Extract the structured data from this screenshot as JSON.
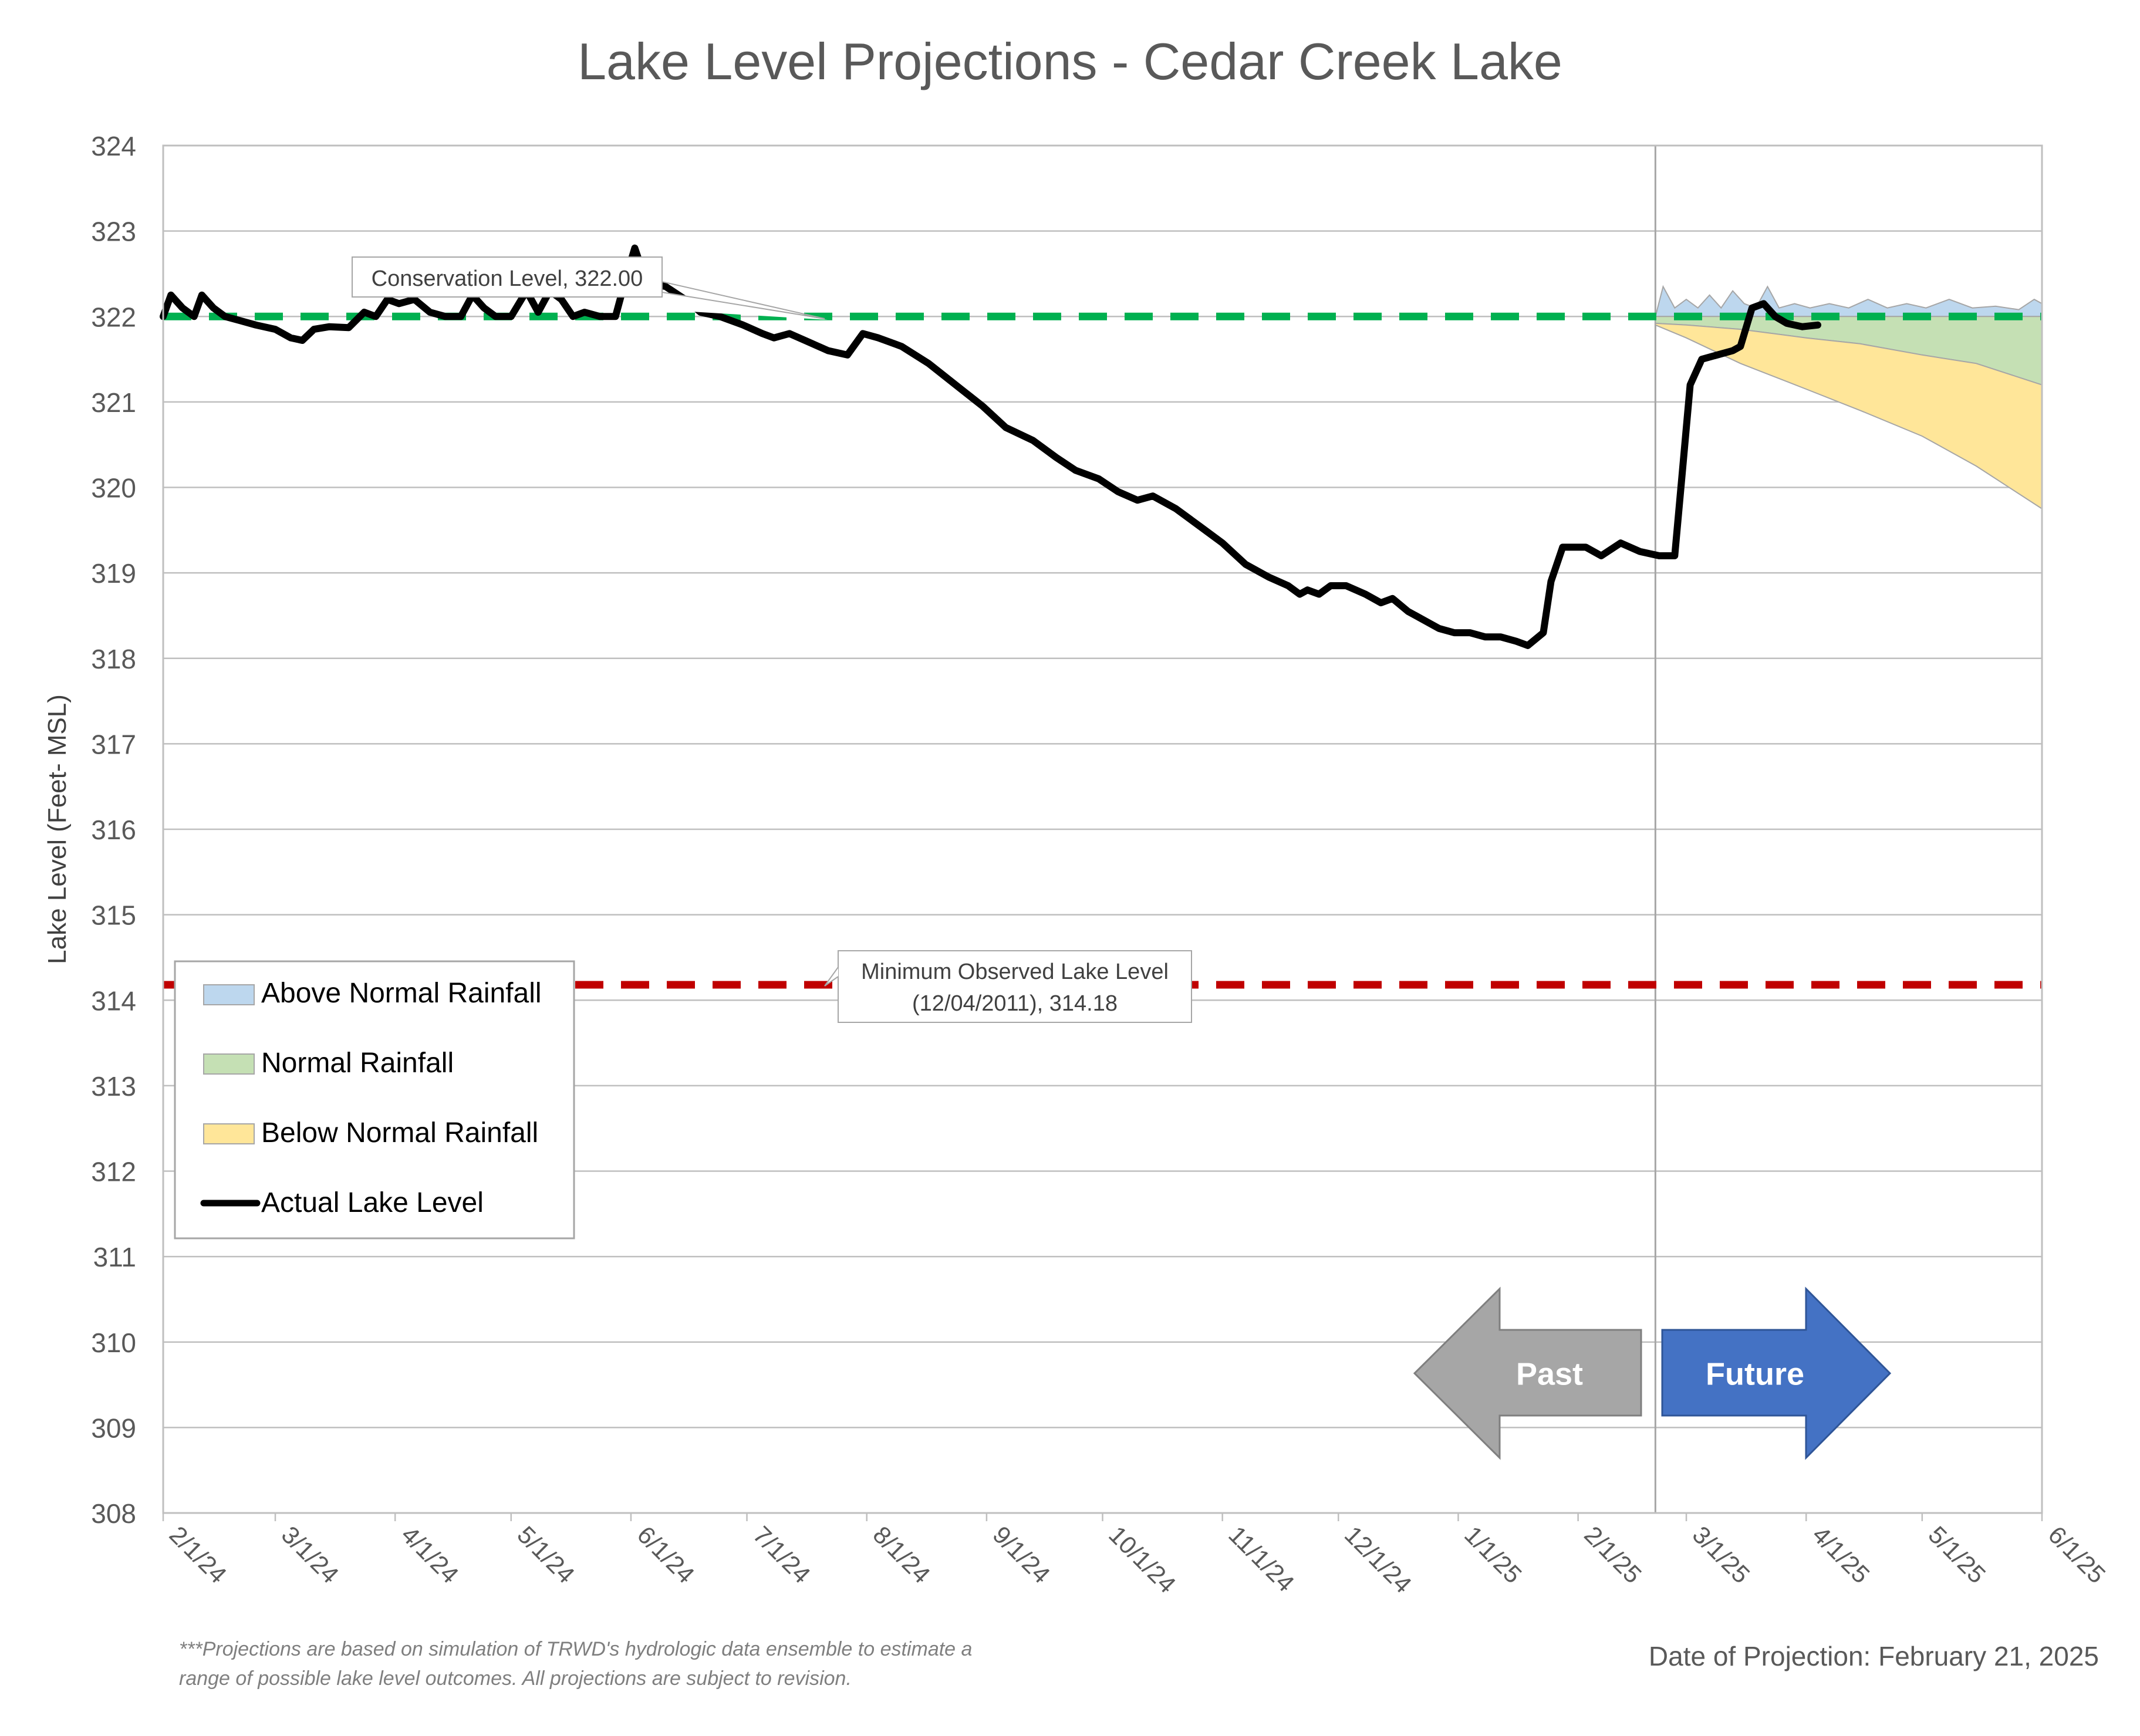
{
  "chart_data": {
    "type": "area",
    "title": "Lake Level Projections - Cedar Creek Lake",
    "ylabel": "Lake Level (Feet- MSL)",
    "xlabel": "",
    "ylim": [
      308,
      324
    ],
    "yticks": [
      308,
      309,
      310,
      311,
      312,
      313,
      314,
      315,
      316,
      317,
      318,
      319,
      320,
      321,
      322,
      323,
      324
    ],
    "xlim": [
      "2024-02-01",
      "2025-06-01"
    ],
    "xticks": [
      {
        "date": "2024-02-01",
        "label": "2/1/24"
      },
      {
        "date": "2024-03-01",
        "label": "3/1/24"
      },
      {
        "date": "2024-04-01",
        "label": "4/1/24"
      },
      {
        "date": "2024-05-01",
        "label": "5/1/24"
      },
      {
        "date": "2024-06-01",
        "label": "6/1/24"
      },
      {
        "date": "2024-07-01",
        "label": "7/1/24"
      },
      {
        "date": "2024-08-01",
        "label": "8/1/24"
      },
      {
        "date": "2024-09-01",
        "label": "9/1/24"
      },
      {
        "date": "2024-10-01",
        "label": "10/1/24"
      },
      {
        "date": "2024-11-01",
        "label": "11/1/24"
      },
      {
        "date": "2024-12-01",
        "label": "12/1/24"
      },
      {
        "date": "2025-01-01",
        "label": "1/1/25"
      },
      {
        "date": "2025-02-01",
        "label": "2/1/25"
      },
      {
        "date": "2025-03-01",
        "label": "3/1/25"
      },
      {
        "date": "2025-04-01",
        "label": "4/1/25"
      },
      {
        "date": "2025-05-01",
        "label": "5/1/25"
      },
      {
        "date": "2025-06-01",
        "label": "6/1/25"
      }
    ],
    "grid": true,
    "legend_position": "bottom-left",
    "projection_date": "2025-02-21",
    "series": [
      {
        "name": "Actual Lake Level",
        "kind": "line",
        "color": "#000000",
        "points": [
          [
            "2024-02-01",
            322.0
          ],
          [
            "2024-02-03",
            322.25
          ],
          [
            "2024-02-06",
            322.1
          ],
          [
            "2024-02-09",
            322.0
          ],
          [
            "2024-02-11",
            322.25
          ],
          [
            "2024-02-14",
            322.1
          ],
          [
            "2024-02-17",
            322.0
          ],
          [
            "2024-02-21",
            321.95
          ],
          [
            "2024-02-25",
            321.9
          ],
          [
            "2024-03-01",
            321.85
          ],
          [
            "2024-03-05",
            321.75
          ],
          [
            "2024-03-08",
            321.72
          ],
          [
            "2024-03-11",
            321.85
          ],
          [
            "2024-03-15",
            321.88
          ],
          [
            "2024-03-20",
            321.87
          ],
          [
            "2024-03-24",
            322.05
          ],
          [
            "2024-03-27",
            322.0
          ],
          [
            "2024-03-30",
            322.2
          ],
          [
            "2024-04-02",
            322.15
          ],
          [
            "2024-04-06",
            322.2
          ],
          [
            "2024-04-10",
            322.05
          ],
          [
            "2024-04-14",
            322.0
          ],
          [
            "2024-04-18",
            322.0
          ],
          [
            "2024-04-21",
            322.25
          ],
          [
            "2024-04-24",
            322.1
          ],
          [
            "2024-04-27",
            322.0
          ],
          [
            "2024-05-01",
            322.0
          ],
          [
            "2024-05-05",
            322.3
          ],
          [
            "2024-05-08",
            322.05
          ],
          [
            "2024-05-11",
            322.3
          ],
          [
            "2024-05-14",
            322.2
          ],
          [
            "2024-05-17",
            322.0
          ],
          [
            "2024-05-20",
            322.05
          ],
          [
            "2024-05-24",
            322.0
          ],
          [
            "2024-05-28",
            322.0
          ],
          [
            "2024-05-31",
            322.5
          ],
          [
            "2024-06-02",
            322.8
          ],
          [
            "2024-06-05",
            322.4
          ],
          [
            "2024-06-10",
            322.35
          ],
          [
            "2024-06-15",
            322.2
          ],
          [
            "2024-06-19",
            322.05
          ],
          [
            "2024-06-24",
            322.0
          ],
          [
            "2024-06-30",
            321.9
          ],
          [
            "2024-07-05",
            321.8
          ],
          [
            "2024-07-08",
            321.75
          ],
          [
            "2024-07-12",
            321.8
          ],
          [
            "2024-07-17",
            321.7
          ],
          [
            "2024-07-22",
            321.6
          ],
          [
            "2024-07-27",
            321.55
          ],
          [
            "2024-07-31",
            321.8
          ],
          [
            "2024-08-04",
            321.75
          ],
          [
            "2024-08-10",
            321.65
          ],
          [
            "2024-08-17",
            321.45
          ],
          [
            "2024-08-24",
            321.2
          ],
          [
            "2024-08-31",
            320.95
          ],
          [
            "2024-09-06",
            320.7
          ],
          [
            "2024-09-13",
            320.55
          ],
          [
            "2024-09-19",
            320.35
          ],
          [
            "2024-09-24",
            320.2
          ],
          [
            "2024-09-30",
            320.1
          ],
          [
            "2024-10-05",
            319.95
          ],
          [
            "2024-10-10",
            319.85
          ],
          [
            "2024-10-14",
            319.9
          ],
          [
            "2024-10-20",
            319.75
          ],
          [
            "2024-10-26",
            319.55
          ],
          [
            "2024-11-01",
            319.35
          ],
          [
            "2024-11-07",
            319.1
          ],
          [
            "2024-11-13",
            318.95
          ],
          [
            "2024-11-18",
            318.85
          ],
          [
            "2024-11-21",
            318.75
          ],
          [
            "2024-11-23",
            318.8
          ],
          [
            "2024-11-26",
            318.75
          ],
          [
            "2024-11-29",
            318.85
          ],
          [
            "2024-12-03",
            318.85
          ],
          [
            "2024-12-08",
            318.75
          ],
          [
            "2024-12-12",
            318.65
          ],
          [
            "2024-12-15",
            318.7
          ],
          [
            "2024-12-19",
            318.55
          ],
          [
            "2024-12-23",
            318.45
          ],
          [
            "2024-12-27",
            318.35
          ],
          [
            "2024-12-31",
            318.3
          ],
          [
            "2025-01-04",
            318.3
          ],
          [
            "2025-01-08",
            318.25
          ],
          [
            "2025-01-12",
            318.25
          ],
          [
            "2025-01-16",
            318.2
          ],
          [
            "2025-01-19",
            318.15
          ],
          [
            "2025-01-23",
            318.3
          ],
          [
            "2025-01-25",
            318.9
          ],
          [
            "2025-01-28",
            319.3
          ],
          [
            "2025-02-03",
            319.3
          ],
          [
            "2025-02-07",
            319.2
          ],
          [
            "2025-02-12",
            319.35
          ],
          [
            "2025-02-17",
            319.25
          ],
          [
            "2025-02-22",
            319.2
          ],
          [
            "2025-02-26",
            319.2
          ],
          [
            "2025-02-28",
            320.2
          ],
          [
            "2025-03-02",
            321.2
          ],
          [
            "2025-03-05",
            321.5
          ],
          [
            "2025-03-09",
            321.55
          ],
          [
            "2025-03-13",
            321.6
          ],
          [
            "2025-03-15",
            321.65
          ],
          [
            "2025-03-18",
            322.1
          ],
          [
            "2025-03-21",
            322.15
          ],
          [
            "2025-03-24",
            322.0
          ],
          [
            "2025-03-27",
            321.92
          ],
          [
            "2025-03-31",
            321.88
          ],
          [
            "2025-04-04",
            321.9
          ]
        ]
      },
      {
        "name": "Above Normal Rainfall",
        "kind": "area",
        "color": "#bdd7ee",
        "points": [
          [
            "2025-02-21",
            322.0
          ],
          [
            "2025-02-23",
            322.35
          ],
          [
            "2025-02-26",
            322.1
          ],
          [
            "2025-03-01",
            322.2
          ],
          [
            "2025-03-04",
            322.1
          ],
          [
            "2025-03-07",
            322.25
          ],
          [
            "2025-03-10",
            322.1
          ],
          [
            "2025-03-13",
            322.3
          ],
          [
            "2025-03-16",
            322.15
          ],
          [
            "2025-03-19",
            322.1
          ],
          [
            "2025-03-22",
            322.35
          ],
          [
            "2025-03-25",
            322.1
          ],
          [
            "2025-03-29",
            322.15
          ],
          [
            "2025-04-02",
            322.1
          ],
          [
            "2025-04-07",
            322.15
          ],
          [
            "2025-04-12",
            322.1
          ],
          [
            "2025-04-17",
            322.2
          ],
          [
            "2025-04-22",
            322.1
          ],
          [
            "2025-04-27",
            322.15
          ],
          [
            "2025-05-02",
            322.1
          ],
          [
            "2025-05-08",
            322.2
          ],
          [
            "2025-05-14",
            322.1
          ],
          [
            "2025-05-20",
            322.12
          ],
          [
            "2025-05-26",
            322.08
          ],
          [
            "2025-05-30",
            322.2
          ],
          [
            "2025-06-01",
            322.15
          ]
        ]
      },
      {
        "name": "Normal Rainfall",
        "kind": "area",
        "color": "#c5e0b4",
        "points": [
          [
            "2025-02-21",
            321.92
          ],
          [
            "2025-03-01",
            321.9
          ],
          [
            "2025-03-15",
            321.85
          ],
          [
            "2025-04-01",
            321.75
          ],
          [
            "2025-04-15",
            321.68
          ],
          [
            "2025-05-01",
            321.55
          ],
          [
            "2025-05-15",
            321.45
          ],
          [
            "2025-06-01",
            321.2
          ]
        ]
      },
      {
        "name": "Below Normal Rainfall",
        "kind": "area",
        "color": "#ffe699",
        "points": [
          [
            "2025-02-21",
            321.9
          ],
          [
            "2025-03-01",
            321.75
          ],
          [
            "2025-03-15",
            321.45
          ],
          [
            "2025-04-01",
            321.15
          ],
          [
            "2025-04-15",
            320.9
          ],
          [
            "2025-05-01",
            320.6
          ],
          [
            "2025-05-15",
            320.25
          ],
          [
            "2025-06-01",
            319.75
          ]
        ]
      }
    ],
    "reference_lines": [
      {
        "label": "Conservation Level, 322.00",
        "value": 322.0,
        "color": "#00b050"
      },
      {
        "label_line1": "Minimum Observed Lake Level",
        "label_line2": "(12/04/2011), 314.18",
        "value": 314.18,
        "color": "#c00000"
      }
    ],
    "annotations": {
      "past": "Past",
      "future": "Future"
    }
  },
  "footnote": {
    "line1": "***Projections are based on simulation of TRWD's hydrologic data ensemble to estimate a",
    "line2": "range of possible lake level outcomes.  All projections are subject to revision."
  },
  "projection_date_text": "Date of Projection: February 21, 2025"
}
